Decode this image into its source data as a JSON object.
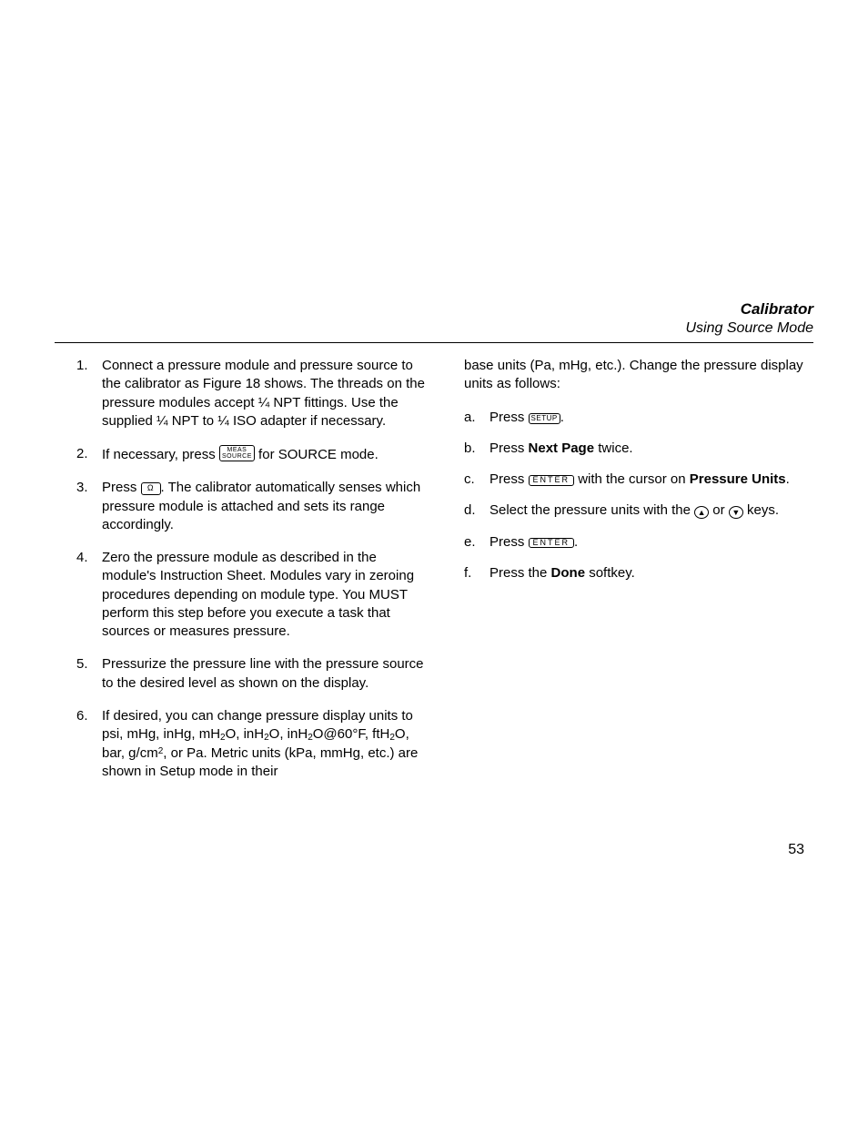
{
  "header": {
    "title": "Calibrator",
    "subtitle": "Using Source Mode"
  },
  "left": {
    "items": [
      {
        "num": "1.",
        "text": "Connect a pressure module and pressure source to the calibrator as Figure 18 shows. The threads on the pressure modules accept ¼ NPT fittings. Use the supplied ¼ NPT to ¼ ISO adapter if necessary."
      },
      {
        "num": "2.",
        "pre": "If necessary, press ",
        "key_top": "MEAS",
        "key_bot": "SOURCE",
        "post": " for SOURCE mode."
      },
      {
        "num": "3.",
        "pre": "Press ",
        "key_icon": "Ω",
        "post": ". The calibrator automatically senses which pressure module is attached and sets its range accordingly."
      },
      {
        "num": "4.",
        "text": "Zero the pressure module as described in the module's Instruction Sheet. Modules vary in zeroing procedures depending on module type. You MUST perform this step before you execute a task that sources or measures pressure."
      },
      {
        "num": "5.",
        "text": "Pressurize the pressure line with the pressure source to the desired level as shown on the display."
      },
      {
        "num": "6.",
        "pre": "If desired, you can change pressure display units to psi, mHg, inHg, mH",
        "sub1": "2",
        "mid1": "O, inH",
        "sub2": "2",
        "mid2": "O, inH",
        "sub3": "2",
        "mid3": "O@60°F, ftH",
        "sub4": "2",
        "mid4": "O, bar, g/cm",
        "sup1": "2",
        "post": ", or Pa. Metric units (kPa, mmHg, etc.) are shown in Setup mode in their"
      }
    ]
  },
  "right": {
    "continuation": "base units (Pa, mHg, etc.). Change the pressure display units as follows:",
    "items": [
      {
        "num": "a.",
        "pre": "Press ",
        "key": "SETUP",
        "post": "."
      },
      {
        "num": "b.",
        "pre": "Press ",
        "bold": "Next Page",
        "post": " twice."
      },
      {
        "num": "c.",
        "pre": "Press ",
        "key": "ENTER",
        "mid": " with the cursor on ",
        "bold": "Pressure Units",
        "post": "."
      },
      {
        "num": "d.",
        "pre": "Select the pressure units with the ",
        "circ1": "▲",
        "mid": " or ",
        "circ2": "▼",
        "post": " keys."
      },
      {
        "num": "e.",
        "pre": "Press ",
        "key": "ENTER",
        "post": "."
      },
      {
        "num": "f.",
        "pre": "Press the ",
        "bold": "Done",
        "post": " softkey."
      }
    ]
  },
  "page_number": "53"
}
